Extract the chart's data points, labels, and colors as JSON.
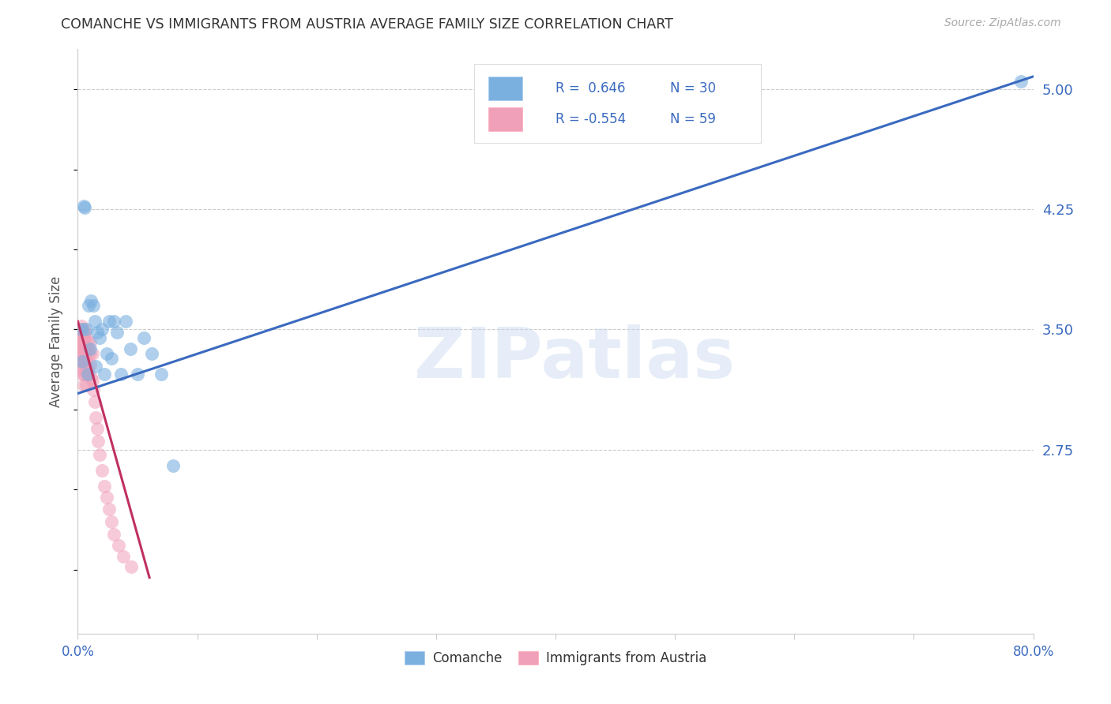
{
  "title": "COMANCHE VS IMMIGRANTS FROM AUSTRIA AVERAGE FAMILY SIZE CORRELATION CHART",
  "source": "Source: ZipAtlas.com",
  "ylabel": "Average Family Size",
  "yticks": [
    2.75,
    3.5,
    4.25,
    5.0
  ],
  "ytick_labels": [
    "2.75",
    "3.50",
    "4.25",
    "5.00"
  ],
  "xlim": [
    0.0,
    0.8
  ],
  "ylim": [
    1.6,
    5.25
  ],
  "legend_blue_R": "0.646",
  "legend_blue_N": "30",
  "legend_pink_R": "-0.554",
  "legend_pink_N": "59",
  "legend_blue_label": "Comanche",
  "legend_pink_label": "Immigrants from Austria",
  "blue_color": "#7ab0e0",
  "pink_color": "#f0a0b8",
  "blue_line_color": "#3a6abf",
  "pink_line_color": "#c03060",
  "watermark_text": "ZIPatlas",
  "blue_scatter_x": [
    0.003,
    0.004,
    0.005,
    0.006,
    0.007,
    0.008,
    0.009,
    0.01,
    0.011,
    0.013,
    0.014,
    0.015,
    0.016,
    0.018,
    0.02,
    0.022,
    0.024,
    0.026,
    0.028,
    0.03,
    0.033,
    0.036,
    0.04,
    0.044,
    0.05,
    0.055,
    0.062,
    0.07,
    0.08,
    0.79
  ],
  "blue_scatter_y": [
    3.5,
    3.3,
    4.27,
    4.26,
    3.5,
    3.22,
    3.65,
    3.38,
    3.68,
    3.65,
    3.55,
    3.27,
    3.48,
    3.45,
    3.5,
    3.22,
    3.35,
    3.55,
    3.32,
    3.55,
    3.48,
    3.22,
    3.55,
    3.38,
    3.22,
    3.45,
    3.35,
    3.22,
    2.65,
    5.05
  ],
  "pink_scatter_x": [
    0.001,
    0.001,
    0.001,
    0.002,
    0.002,
    0.002,
    0.002,
    0.002,
    0.003,
    0.003,
    0.003,
    0.003,
    0.003,
    0.004,
    0.004,
    0.004,
    0.004,
    0.004,
    0.005,
    0.005,
    0.005,
    0.005,
    0.005,
    0.005,
    0.006,
    0.006,
    0.006,
    0.006,
    0.007,
    0.007,
    0.007,
    0.007,
    0.007,
    0.008,
    0.008,
    0.008,
    0.009,
    0.009,
    0.01,
    0.01,
    0.01,
    0.011,
    0.012,
    0.012,
    0.013,
    0.014,
    0.015,
    0.016,
    0.017,
    0.018,
    0.02,
    0.022,
    0.024,
    0.026,
    0.028,
    0.03,
    0.034,
    0.038,
    0.045
  ],
  "pink_scatter_y": [
    3.5,
    3.45,
    3.35,
    3.48,
    3.4,
    3.35,
    3.3,
    3.25,
    3.52,
    3.48,
    3.42,
    3.38,
    3.3,
    3.5,
    3.45,
    3.38,
    3.3,
    3.22,
    3.5,
    3.45,
    3.38,
    3.3,
    3.22,
    3.15,
    3.48,
    3.4,
    3.32,
    3.25,
    3.45,
    3.38,
    3.3,
    3.22,
    3.15,
    3.42,
    3.35,
    3.25,
    3.38,
    3.22,
    3.42,
    3.35,
    3.28,
    3.2,
    3.35,
    3.18,
    3.12,
    3.05,
    2.95,
    2.88,
    2.8,
    2.72,
    2.62,
    2.52,
    2.45,
    2.38,
    2.3,
    2.22,
    2.15,
    2.08,
    2.02
  ],
  "blue_line_x": [
    0.0,
    0.8
  ],
  "blue_line_y": [
    3.1,
    5.08
  ],
  "pink_line_x": [
    0.0,
    0.06
  ],
  "pink_line_y": [
    3.55,
    1.95
  ],
  "background_color": "#ffffff",
  "grid_color": "#cccccc",
  "title_color": "#333333",
  "axis_color": "#3a6abf",
  "source_color": "#aaaaaa",
  "xtick_positions": [
    0.0,
    0.1,
    0.2,
    0.3,
    0.4,
    0.5,
    0.6,
    0.7,
    0.8
  ]
}
